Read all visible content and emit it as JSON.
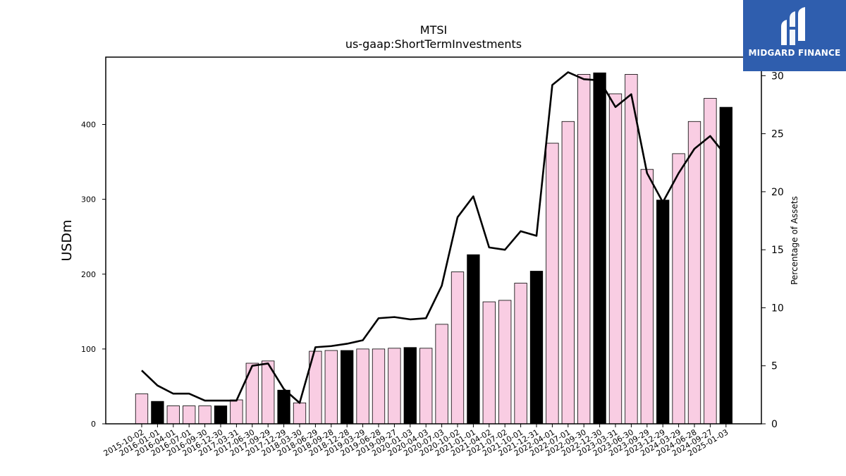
{
  "chart_data": {
    "type": "bar",
    "title": "MTSI",
    "subtitle": "us-gaap:ShortTermInvestments",
    "ylabel": "USDm",
    "y2label": "Percentage of Assets",
    "ylim": [
      0,
      490
    ],
    "y2lim": [
      0,
      31.6
    ],
    "yticks": [
      0,
      100,
      200,
      300,
      400
    ],
    "y2ticks": [
      0,
      5,
      10,
      15,
      20,
      25,
      30
    ],
    "grid": false,
    "categories": [
      "2015-10-02",
      "2016-01-01",
      "2016-04-01",
      "2016-07-01",
      "2016-09-30",
      "2016-12-30",
      "2017-03-31",
      "2017-06-30",
      "2017-09-29",
      "2017-12-29",
      "2018-03-30",
      "2018-06-29",
      "2018-09-28",
      "2018-12-28",
      "2019-03-29",
      "2019-06-28",
      "2019-09-27",
      "2020-01-03",
      "2020-04-03",
      "2020-07-03",
      "2020-10-02",
      "2021-01-01",
      "2021-04-02",
      "2021-07-02",
      "2021-10-01",
      "2021-12-31",
      "2022-04-01",
      "2022-07-01",
      "2022-09-30",
      "2022-12-30",
      "2023-03-31",
      "2023-06-30",
      "2023-09-29",
      "2023-12-29",
      "2024-03-29",
      "2024-06-28",
      "2024-09-27",
      "2025-01-03"
    ],
    "series": [
      {
        "type": "bar",
        "values": [
          40,
          30,
          24,
          24,
          24,
          24,
          32,
          81,
          84,
          45,
          28,
          97,
          98,
          98,
          100,
          100,
          101,
          102,
          101,
          133,
          203,
          226,
          163,
          165,
          188,
          204,
          375,
          404,
          467,
          469,
          441,
          467,
          340,
          299,
          361,
          404,
          435,
          423
        ],
        "fiscal_year_end": [
          false,
          true,
          false,
          false,
          false,
          true,
          false,
          false,
          false,
          true,
          false,
          false,
          false,
          true,
          false,
          false,
          false,
          true,
          false,
          false,
          false,
          true,
          false,
          false,
          false,
          true,
          false,
          false,
          false,
          true,
          false,
          false,
          false,
          true,
          false,
          false,
          false,
          true
        ]
      },
      {
        "type": "line",
        "axis": "right",
        "values": [
          4.6,
          3.3,
          2.6,
          2.6,
          2.0,
          2.0,
          2.0,
          5.0,
          5.2,
          3.0,
          1.8,
          6.6,
          6.7,
          6.9,
          7.2,
          9.1,
          9.2,
          9.0,
          9.1,
          11.9,
          17.8,
          19.6,
          15.2,
          15.0,
          16.6,
          16.2,
          29.2,
          30.3,
          29.7,
          29.6,
          27.3,
          28.4,
          21.6,
          19.1,
          21.6,
          23.7,
          24.8,
          23.1
        ]
      }
    ],
    "colors": {
      "bar_default": "#f9cde3",
      "bar_fiscal_year_end": "#000000",
      "line": "#000000"
    }
  },
  "logo": {
    "text": "MIDGARD FINANCE",
    "background": "#2f5eae"
  }
}
